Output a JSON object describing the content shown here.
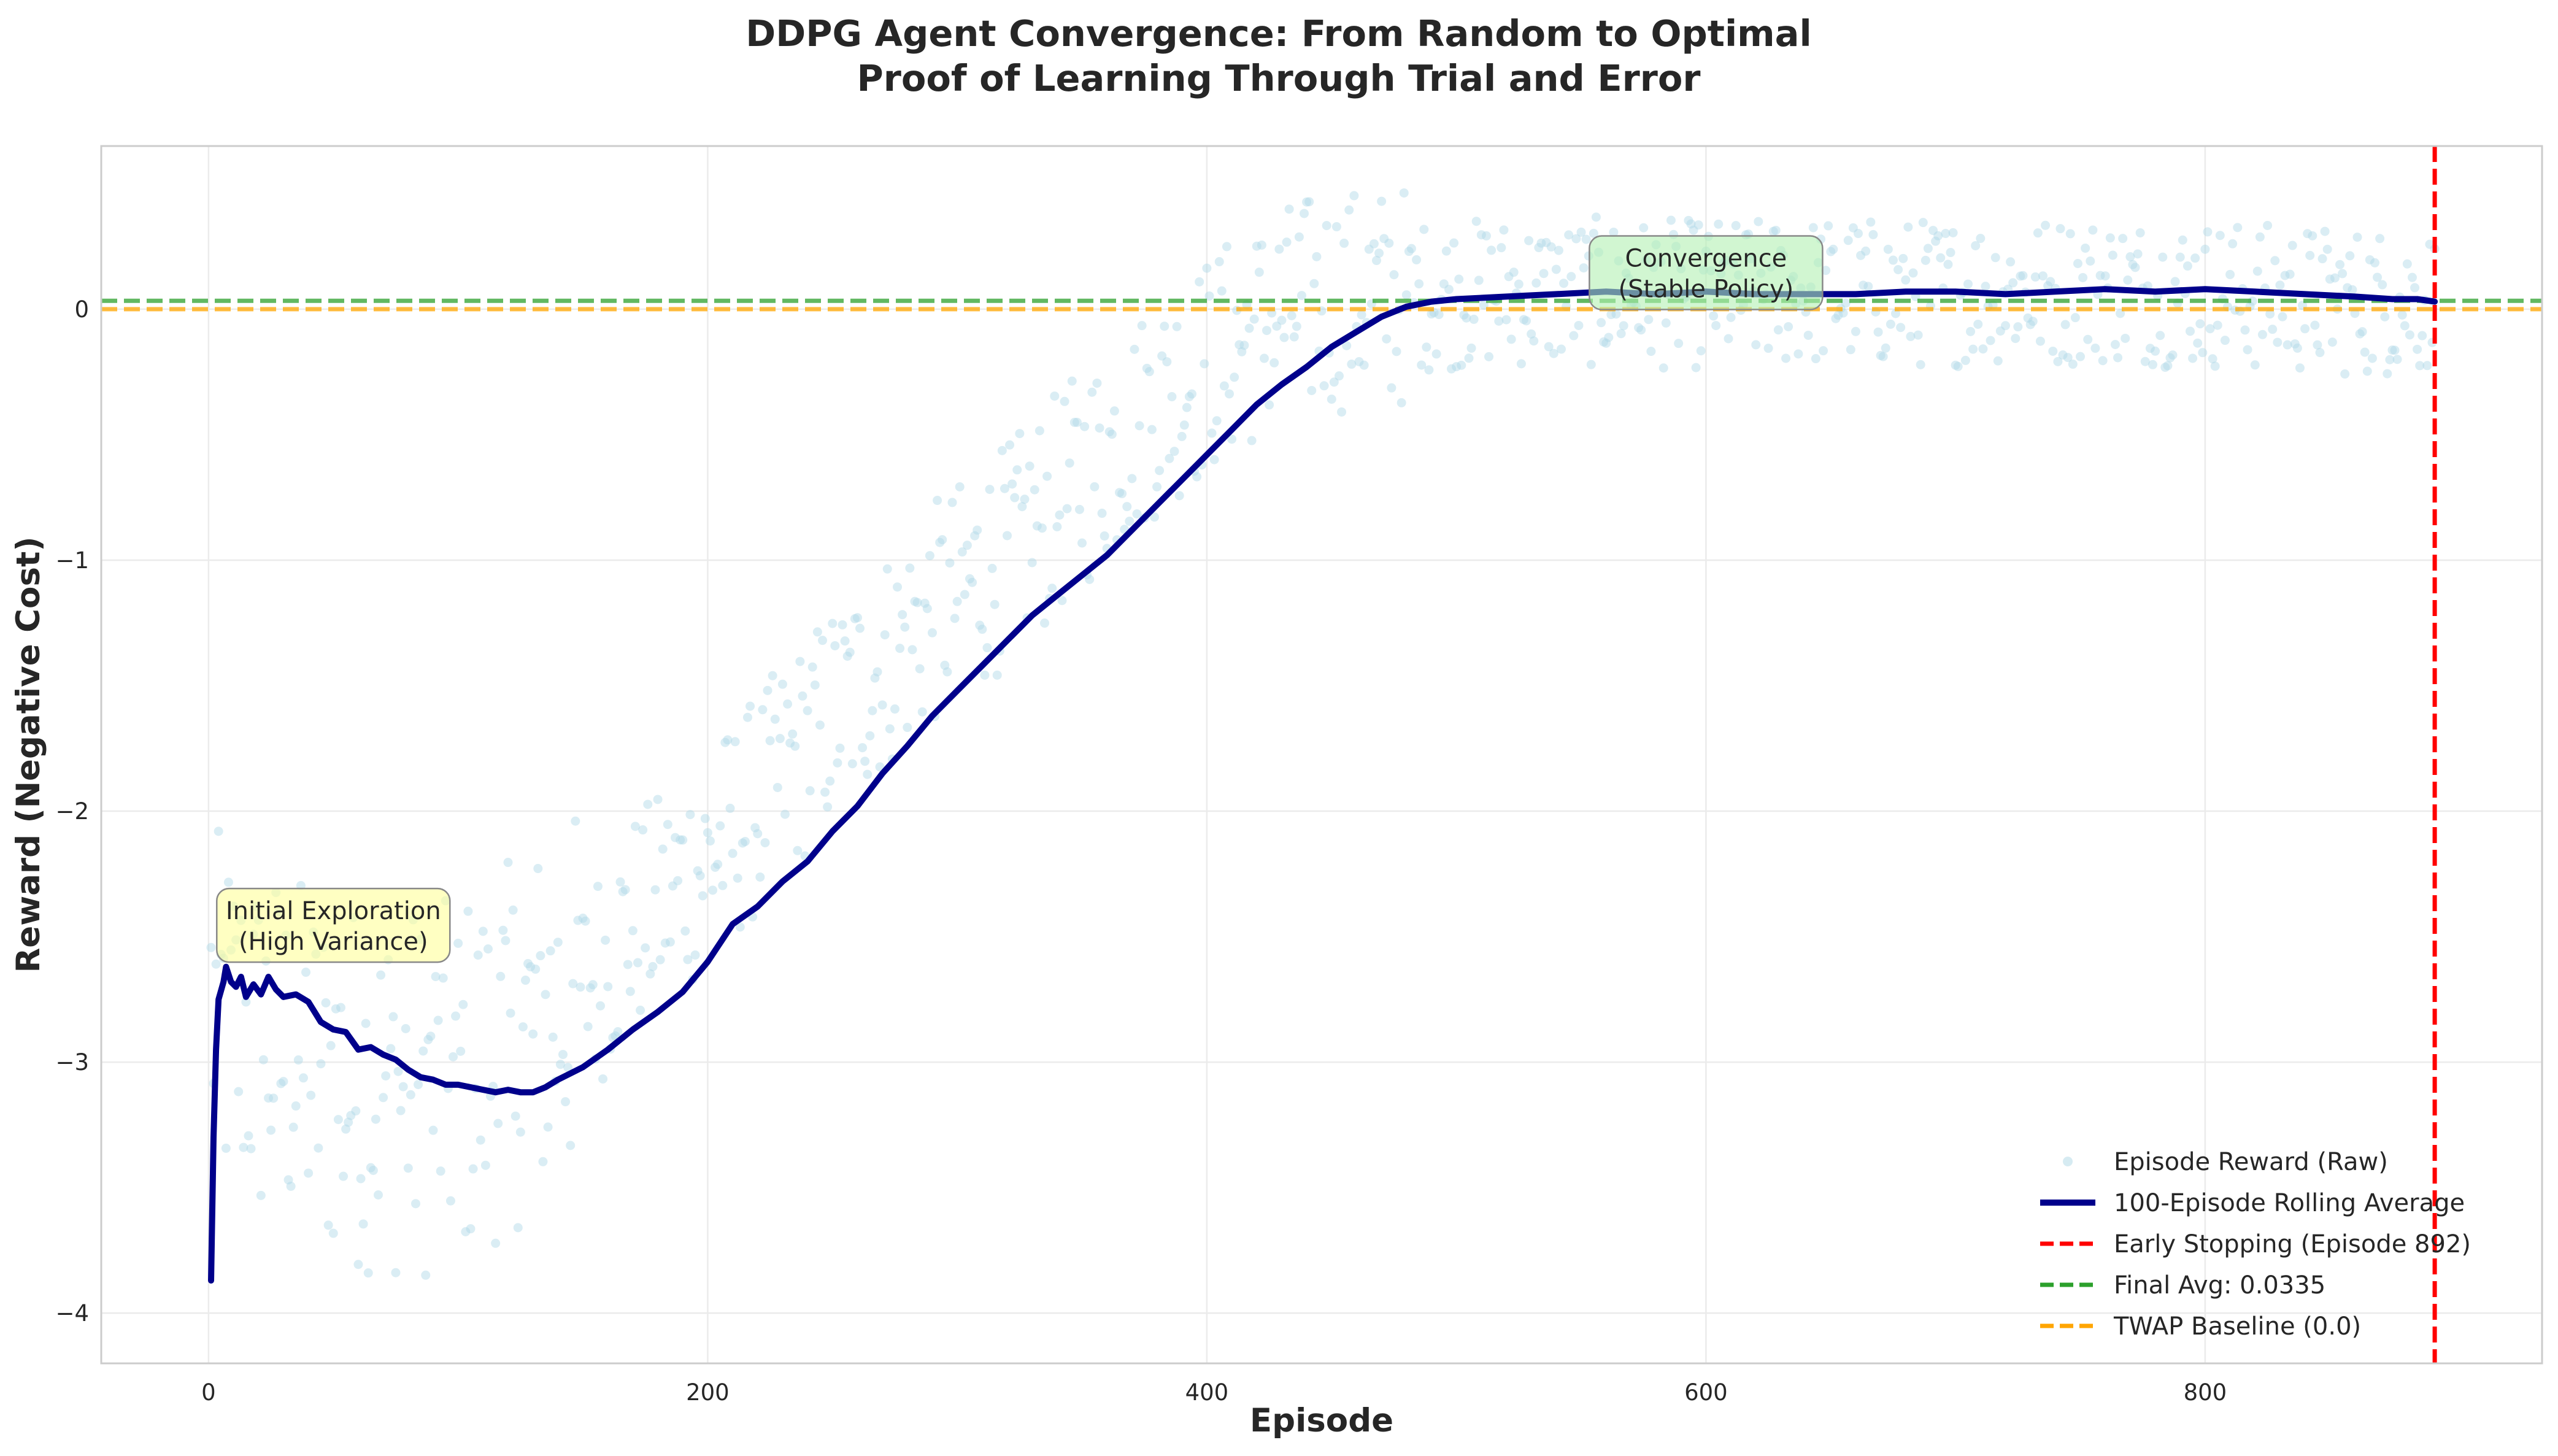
{
  "chart_data": {
    "type": "line",
    "title_line1": "DDPG Agent Convergence: From Random to Optimal",
    "title_line2": "Proof of Learning Through Trial and Error",
    "xlabel": "Episode",
    "ylabel": "Reward (Negative Cost)",
    "xlim": [
      -43,
      935
    ],
    "ylim": [
      -4.2,
      0.65
    ],
    "xticks": [
      0,
      200,
      400,
      600,
      800
    ],
    "yticks": [
      -4,
      -3,
      -2,
      -1,
      0
    ],
    "grid": true,
    "legend_position": "lower-right",
    "rolling_average": [
      [
        1,
        -3.87
      ],
      [
        2,
        -3.3
      ],
      [
        3,
        -2.95
      ],
      [
        4,
        -2.75
      ],
      [
        6,
        -2.68
      ],
      [
        7,
        -2.62
      ],
      [
        9,
        -2.68
      ],
      [
        11,
        -2.7
      ],
      [
        13,
        -2.66
      ],
      [
        15,
        -2.74
      ],
      [
        18,
        -2.69
      ],
      [
        21,
        -2.73
      ],
      [
        24,
        -2.66
      ],
      [
        27,
        -2.71
      ],
      [
        30,
        -2.74
      ],
      [
        35,
        -2.73
      ],
      [
        40,
        -2.76
      ],
      [
        45,
        -2.84
      ],
      [
        50,
        -2.87
      ],
      [
        55,
        -2.88
      ],
      [
        60,
        -2.95
      ],
      [
        65,
        -2.94
      ],
      [
        70,
        -2.97
      ],
      [
        75,
        -2.99
      ],
      [
        80,
        -3.03
      ],
      [
        85,
        -3.06
      ],
      [
        90,
        -3.07
      ],
      [
        95,
        -3.09
      ],
      [
        100,
        -3.09
      ],
      [
        105,
        -3.1
      ],
      [
        110,
        -3.11
      ],
      [
        115,
        -3.12
      ],
      [
        120,
        -3.11
      ],
      [
        125,
        -3.12
      ],
      [
        130,
        -3.12
      ],
      [
        135,
        -3.1
      ],
      [
        140,
        -3.07
      ],
      [
        150,
        -3.02
      ],
      [
        160,
        -2.95
      ],
      [
        170,
        -2.87
      ],
      [
        180,
        -2.8
      ],
      [
        190,
        -2.72
      ],
      [
        200,
        -2.6
      ],
      [
        210,
        -2.45
      ],
      [
        220,
        -2.38
      ],
      [
        230,
        -2.28
      ],
      [
        240,
        -2.2
      ],
      [
        250,
        -2.08
      ],
      [
        260,
        -1.98
      ],
      [
        270,
        -1.85
      ],
      [
        280,
        -1.74
      ],
      [
        290,
        -1.62
      ],
      [
        300,
        -1.52
      ],
      [
        310,
        -1.42
      ],
      [
        320,
        -1.32
      ],
      [
        330,
        -1.22
      ],
      [
        340,
        -1.14
      ],
      [
        350,
        -1.06
      ],
      [
        360,
        -0.98
      ],
      [
        370,
        -0.88
      ],
      [
        380,
        -0.78
      ],
      [
        390,
        -0.68
      ],
      [
        400,
        -0.58
      ],
      [
        410,
        -0.48
      ],
      [
        420,
        -0.38
      ],
      [
        430,
        -0.3
      ],
      [
        440,
        -0.23
      ],
      [
        450,
        -0.15
      ],
      [
        460,
        -0.09
      ],
      [
        470,
        -0.03
      ],
      [
        480,
        0.01
      ],
      [
        490,
        0.03
      ],
      [
        500,
        0.04
      ],
      [
        520,
        0.05
      ],
      [
        540,
        0.06
      ],
      [
        560,
        0.07
      ],
      [
        580,
        0.06
      ],
      [
        600,
        0.07
      ],
      [
        620,
        0.06
      ],
      [
        640,
        0.06
      ],
      [
        660,
        0.06
      ],
      [
        680,
        0.07
      ],
      [
        700,
        0.07
      ],
      [
        720,
        0.06
      ],
      [
        740,
        0.07
      ],
      [
        760,
        0.08
      ],
      [
        780,
        0.07
      ],
      [
        800,
        0.08
      ],
      [
        820,
        0.07
      ],
      [
        840,
        0.06
      ],
      [
        860,
        0.05
      ],
      [
        875,
        0.04
      ],
      [
        885,
        0.04
      ],
      [
        892,
        0.03
      ]
    ],
    "series": [
      {
        "name": "Episode Reward (Raw)",
        "color": "#add8e6",
        "style": "scatter"
      },
      {
        "name": "100-Episode Rolling Average",
        "color": "#00008b",
        "style": "line"
      }
    ],
    "reference_lines": [
      {
        "name": "Early Stopping (Episode 892)",
        "axis": "x",
        "value": 892,
        "color": "#ff0000"
      },
      {
        "name": "Final Avg: 0.0335",
        "axis": "y",
        "value": 0.0335,
        "color": "#2ca02c"
      },
      {
        "name": "TWAP Baseline (0.0)",
        "axis": "y",
        "value": 0.0,
        "color": "#ffa500"
      }
    ],
    "annotations": [
      {
        "line1": "Initial Exploration",
        "line2": "(High Variance)",
        "x": 50,
        "y": -2.45,
        "fill": "#ffff99"
      },
      {
        "line1": "Convergence",
        "line2": "(Stable Policy)",
        "x": 600,
        "y": 0.15,
        "fill": "#b3f0b3"
      }
    ]
  }
}
